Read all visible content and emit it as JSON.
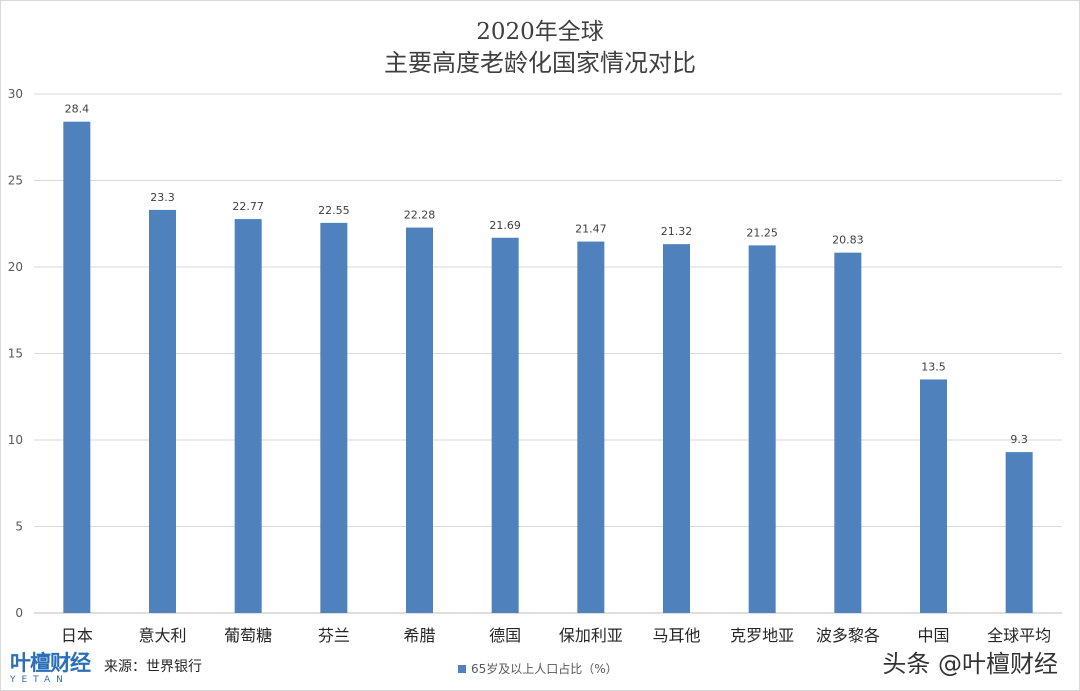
{
  "chart_data": {
    "type": "bar",
    "title_line1": "2020年全球",
    "title_line2": "主要高度老龄化国家情况对比",
    "categories": [
      "日本",
      "意大利",
      "葡萄糖",
      "芬兰",
      "希腊",
      "德国",
      "保加利亚",
      "马耳他",
      "克罗地亚",
      "波多黎各",
      "中国",
      "全球平均"
    ],
    "series": [
      {
        "name": "65岁及以上人口占比（%）",
        "values": [
          28.4,
          23.3,
          22.77,
          22.55,
          22.28,
          21.69,
          21.47,
          21.32,
          21.25,
          20.83,
          13.5,
          9.3
        ],
        "labels": [
          "28.4",
          "23.3",
          "22.77",
          "22.55",
          "22.28",
          "21.69",
          "21.47",
          "21.32",
          "21.25",
          "20.83",
          "13.5",
          "9.3"
        ]
      }
    ],
    "ylim": [
      0,
      30
    ],
    "yticks": [
      0,
      5,
      10,
      15,
      20,
      25,
      30
    ],
    "grid": true,
    "legend_position": "bottom",
    "bar_color": "#4f81bd"
  },
  "footer": {
    "logo_cn": "叶檀财经",
    "logo_en": "YETAN",
    "source": "来源：世界银行",
    "watermark": "头条 @叶檀财经"
  }
}
